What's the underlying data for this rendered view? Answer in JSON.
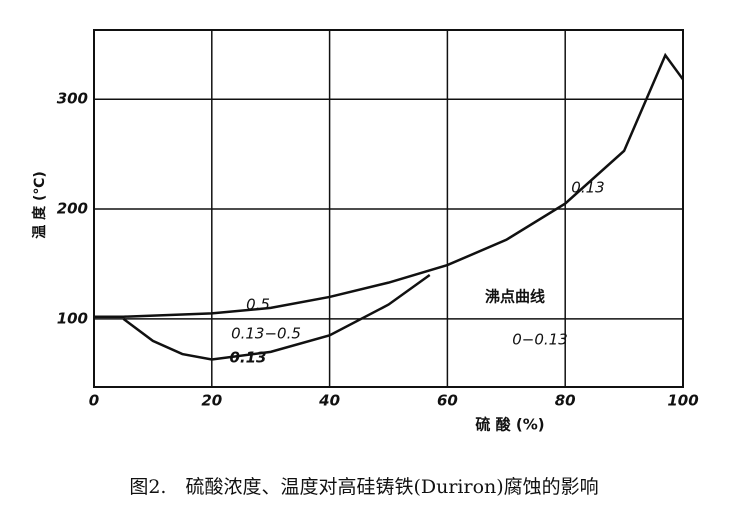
{
  "chart_data": {
    "type": "line",
    "x_label": "硫 酸 (%)",
    "y_label": "温 度 (℃)",
    "caption": "图2.　硫酸浓度、温度对高硅铸铁(Duriron)腐蚀的影响",
    "xlim": [
      0,
      100
    ],
    "xticks": [
      0,
      20,
      40,
      60,
      80,
      100
    ],
    "ylim": [
      38,
      363
    ],
    "yticks": [
      100,
      200,
      300
    ],
    "grid": true,
    "series": [
      {
        "name": "沸点曲线",
        "color": "#111111",
        "x": [
          0,
          5,
          20,
          30,
          40,
          50,
          60,
          70,
          80,
          90,
          97,
          100
        ],
        "values": [
          102,
          102,
          105,
          110,
          120,
          133,
          149,
          172,
          205,
          253,
          340,
          318
        ]
      },
      {
        "name": "0.13",
        "color": "#111111",
        "x": [
          5,
          10,
          15,
          20,
          30,
          40,
          50,
          57
        ],
        "values": [
          100,
          80,
          68,
          63,
          70,
          85,
          113,
          140
        ]
      }
    ],
    "annotations": [
      "0.5",
      "0.13−0.5",
      "0.13",
      "0−0.13"
    ]
  }
}
